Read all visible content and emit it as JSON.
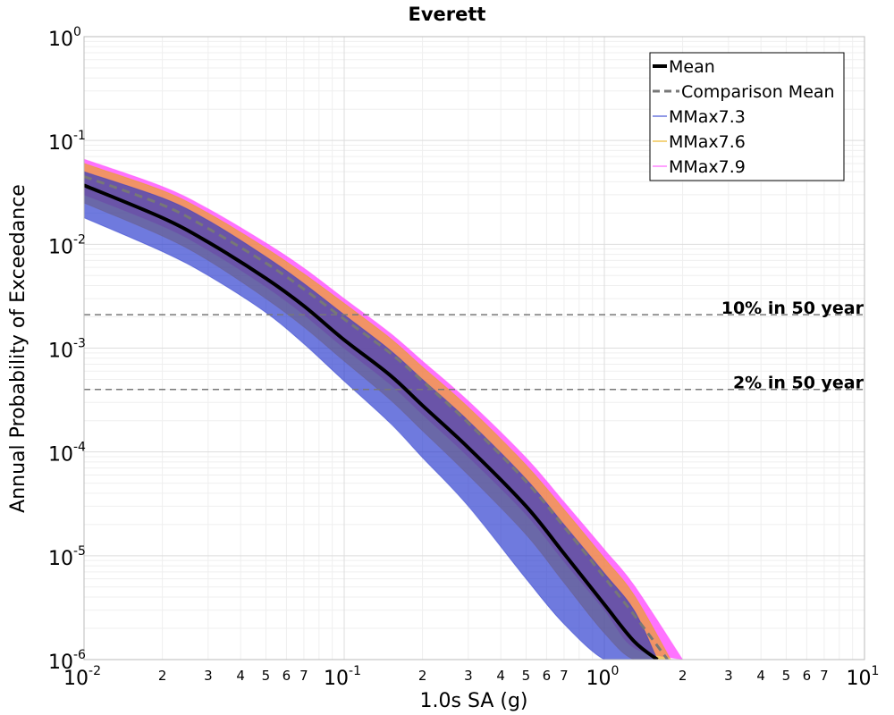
{
  "chart_data": {
    "type": "line",
    "title": "Everett",
    "xlabel": "1.0s SA (g)",
    "ylabel": "Annual Probability of Exceedance",
    "x_scale": "log",
    "y_scale": "log",
    "xlim": [
      0.01,
      10
    ],
    "ylim": [
      1e-06,
      1
    ],
    "grid": true,
    "legend_position": "top-right",
    "x_major_ticks": [
      {
        "value": 0.01,
        "base": "10",
        "exp": "-2"
      },
      {
        "value": 0.1,
        "base": "10",
        "exp": "-1"
      },
      {
        "value": 1,
        "base": "10",
        "exp": "0"
      },
      {
        "value": 10,
        "base": "10",
        "exp": "1"
      }
    ],
    "x_minor_labels": [
      "2",
      "3",
      "4",
      "5",
      "6",
      "7"
    ],
    "y_major_ticks": [
      {
        "value": 1,
        "base": "10",
        "exp": "0"
      },
      {
        "value": 0.1,
        "base": "10",
        "exp": "-1"
      },
      {
        "value": 0.01,
        "base": "10",
        "exp": "-2"
      },
      {
        "value": 0.001,
        "base": "10",
        "exp": "-3"
      },
      {
        "value": 0.0001,
        "base": "10",
        "exp": "-4"
      },
      {
        "value": 1e-05,
        "base": "10",
        "exp": "-5"
      },
      {
        "value": 1e-06,
        "base": "10",
        "exp": "-6"
      }
    ],
    "series": [
      {
        "name": "Mean",
        "color": "#000000",
        "style": "solid",
        "x": [
          0.01,
          0.02,
          0.03,
          0.05,
          0.07,
          0.1,
          0.15,
          0.2,
          0.3,
          0.5,
          0.7,
          1.0,
          1.3,
          1.6
        ],
        "y": [
          0.037,
          0.018,
          0.0105,
          0.0047,
          0.00255,
          0.0012,
          0.00055,
          0.00028,
          0.00011,
          3e-05,
          1.05e-05,
          3.4e-06,
          1.5e-06,
          1e-06
        ]
      },
      {
        "name": "Comparison Mean",
        "color": "#777777",
        "style": "dashed",
        "x": [
          0.01,
          0.02,
          0.03,
          0.05,
          0.07,
          0.1,
          0.15,
          0.2,
          0.3,
          0.5,
          0.7,
          1.0,
          1.3,
          1.75
        ],
        "y": [
          0.045,
          0.024,
          0.0142,
          0.0066,
          0.0037,
          0.0019,
          0.0009,
          0.00048,
          0.00019,
          5.2e-05,
          1.9e-05,
          6.2e-06,
          2.7e-06,
          1e-06
        ]
      },
      {
        "name": "MMax7.3",
        "color": "#2233cc",
        "band": true,
        "x": [
          0.01,
          0.02,
          0.03,
          0.05,
          0.07,
          0.1,
          0.15,
          0.2,
          0.3,
          0.5,
          0.7,
          1.0,
          1.3,
          1.6
        ],
        "y_low": [
          0.018,
          0.0085,
          0.005,
          0.0022,
          0.0011,
          0.00048,
          0.00019,
          8.8e-05,
          3e-05,
          6e-06,
          2.2e-06,
          1e-06,
          1e-06,
          1e-06
        ],
        "y_high": [
          0.05,
          0.028,
          0.017,
          0.0076,
          0.0042,
          0.0021,
          0.00096,
          0.0005,
          0.0002,
          5.5e-05,
          2e-05,
          6.8e-06,
          3e-06,
          1e-06
        ]
      },
      {
        "name": "MMax7.6",
        "color": "#e8a800",
        "band": true,
        "x": [
          0.01,
          0.02,
          0.03,
          0.05,
          0.07,
          0.1,
          0.15,
          0.2,
          0.3,
          0.5,
          0.7,
          1.0,
          1.3,
          1.8
        ],
        "y_low": [
          0.025,
          0.012,
          0.007,
          0.003,
          0.0016,
          0.00075,
          0.00032,
          0.00016,
          6e-05,
          1.6e-05,
          5.5e-06,
          1.8e-06,
          1e-06,
          1e-06
        ],
        "y_high": [
          0.06,
          0.033,
          0.02,
          0.0092,
          0.0052,
          0.0027,
          0.00125,
          0.00066,
          0.00027,
          7.5e-05,
          2.8e-05,
          9.5e-06,
          4.2e-06,
          1e-06
        ]
      },
      {
        "name": "MMax7.9",
        "color": "#ff44ff",
        "band": true,
        "x": [
          0.01,
          0.02,
          0.03,
          0.05,
          0.07,
          0.1,
          0.15,
          0.2,
          0.3,
          0.5,
          0.7,
          1.0,
          1.3,
          2.0
        ],
        "y_low": [
          0.03,
          0.015,
          0.0088,
          0.0039,
          0.0021,
          0.001,
          0.00045,
          0.00023,
          9e-05,
          2.5e-05,
          8.8e-06,
          3e-06,
          1.3e-06,
          1e-06
        ],
        "y_high": [
          0.066,
          0.036,
          0.022,
          0.0103,
          0.0059,
          0.003,
          0.0014,
          0.00075,
          0.00031,
          8.8e-05,
          3.3e-05,
          1.15e-05,
          5.2e-06,
          1e-06
        ]
      }
    ],
    "reference_lines": [
      {
        "label": "10% in 50 year",
        "y": 0.0021
      },
      {
        "label": "2% in 50 year",
        "y": 0.0004
      }
    ]
  }
}
